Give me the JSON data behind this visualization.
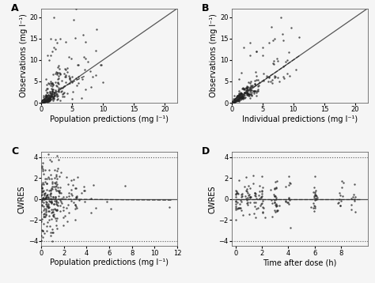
{
  "panel_A": {
    "label": "A",
    "xlabel": "Population predictions (mg l⁻¹)",
    "ylabel": "Observations (mg l⁻¹)",
    "xlim": [
      0,
      22
    ],
    "ylim": [
      0,
      22
    ],
    "xticks": [
      0,
      5,
      10,
      15,
      20
    ],
    "yticks": [
      0,
      5,
      10,
      15,
      20
    ],
    "identity_line_style": "solid",
    "loess_line_style": "dashed"
  },
  "panel_B": {
    "label": "B",
    "xlabel": "Individual predictions (mg l⁻¹)",
    "ylabel": "Observations (mg l⁻¹)",
    "xlim": [
      0,
      22
    ],
    "ylim": [
      0,
      22
    ],
    "xticks": [
      0,
      5,
      10,
      15,
      20
    ],
    "yticks": [
      0,
      5,
      10,
      15,
      20
    ],
    "identity_line_style": "solid",
    "loess_line_style": "dashed"
  },
  "panel_C": {
    "label": "C",
    "xlabel": "Population predictions (mg l⁻¹)",
    "ylabel": "CWRES",
    "xlim": [
      0,
      12
    ],
    "ylim": [
      -4.5,
      4.5
    ],
    "xticks": [
      0,
      2,
      4,
      6,
      8,
      10,
      12
    ],
    "yticks": [
      -4,
      -2,
      0,
      2,
      4
    ],
    "hline_y": 0,
    "dotted_hlines": [
      -4,
      4
    ]
  },
  "panel_D": {
    "label": "D",
    "xlabel": "Time after dose (h)",
    "ylabel": "CWRES",
    "xlim": [
      -0.3,
      10
    ],
    "ylim": [
      -4.5,
      4.5
    ],
    "xticks": [
      0,
      2,
      4,
      6,
      8
    ],
    "yticks": [
      -4,
      -2,
      0,
      2,
      4
    ],
    "hline_y": 0,
    "dotted_hlines": [
      -4,
      4
    ]
  },
  "dot_color": "#222222",
  "dot_size": 3,
  "dot_alpha": 0.75,
  "identity_line_color": "#555555",
  "loess_line_color": "#333333",
  "ref_line_color": "#555555",
  "dotted_line_color": "#555555",
  "background_color": "#f5f5f5",
  "font_size_label": 7,
  "font_size_tick": 6,
  "panel_label_size": 9
}
